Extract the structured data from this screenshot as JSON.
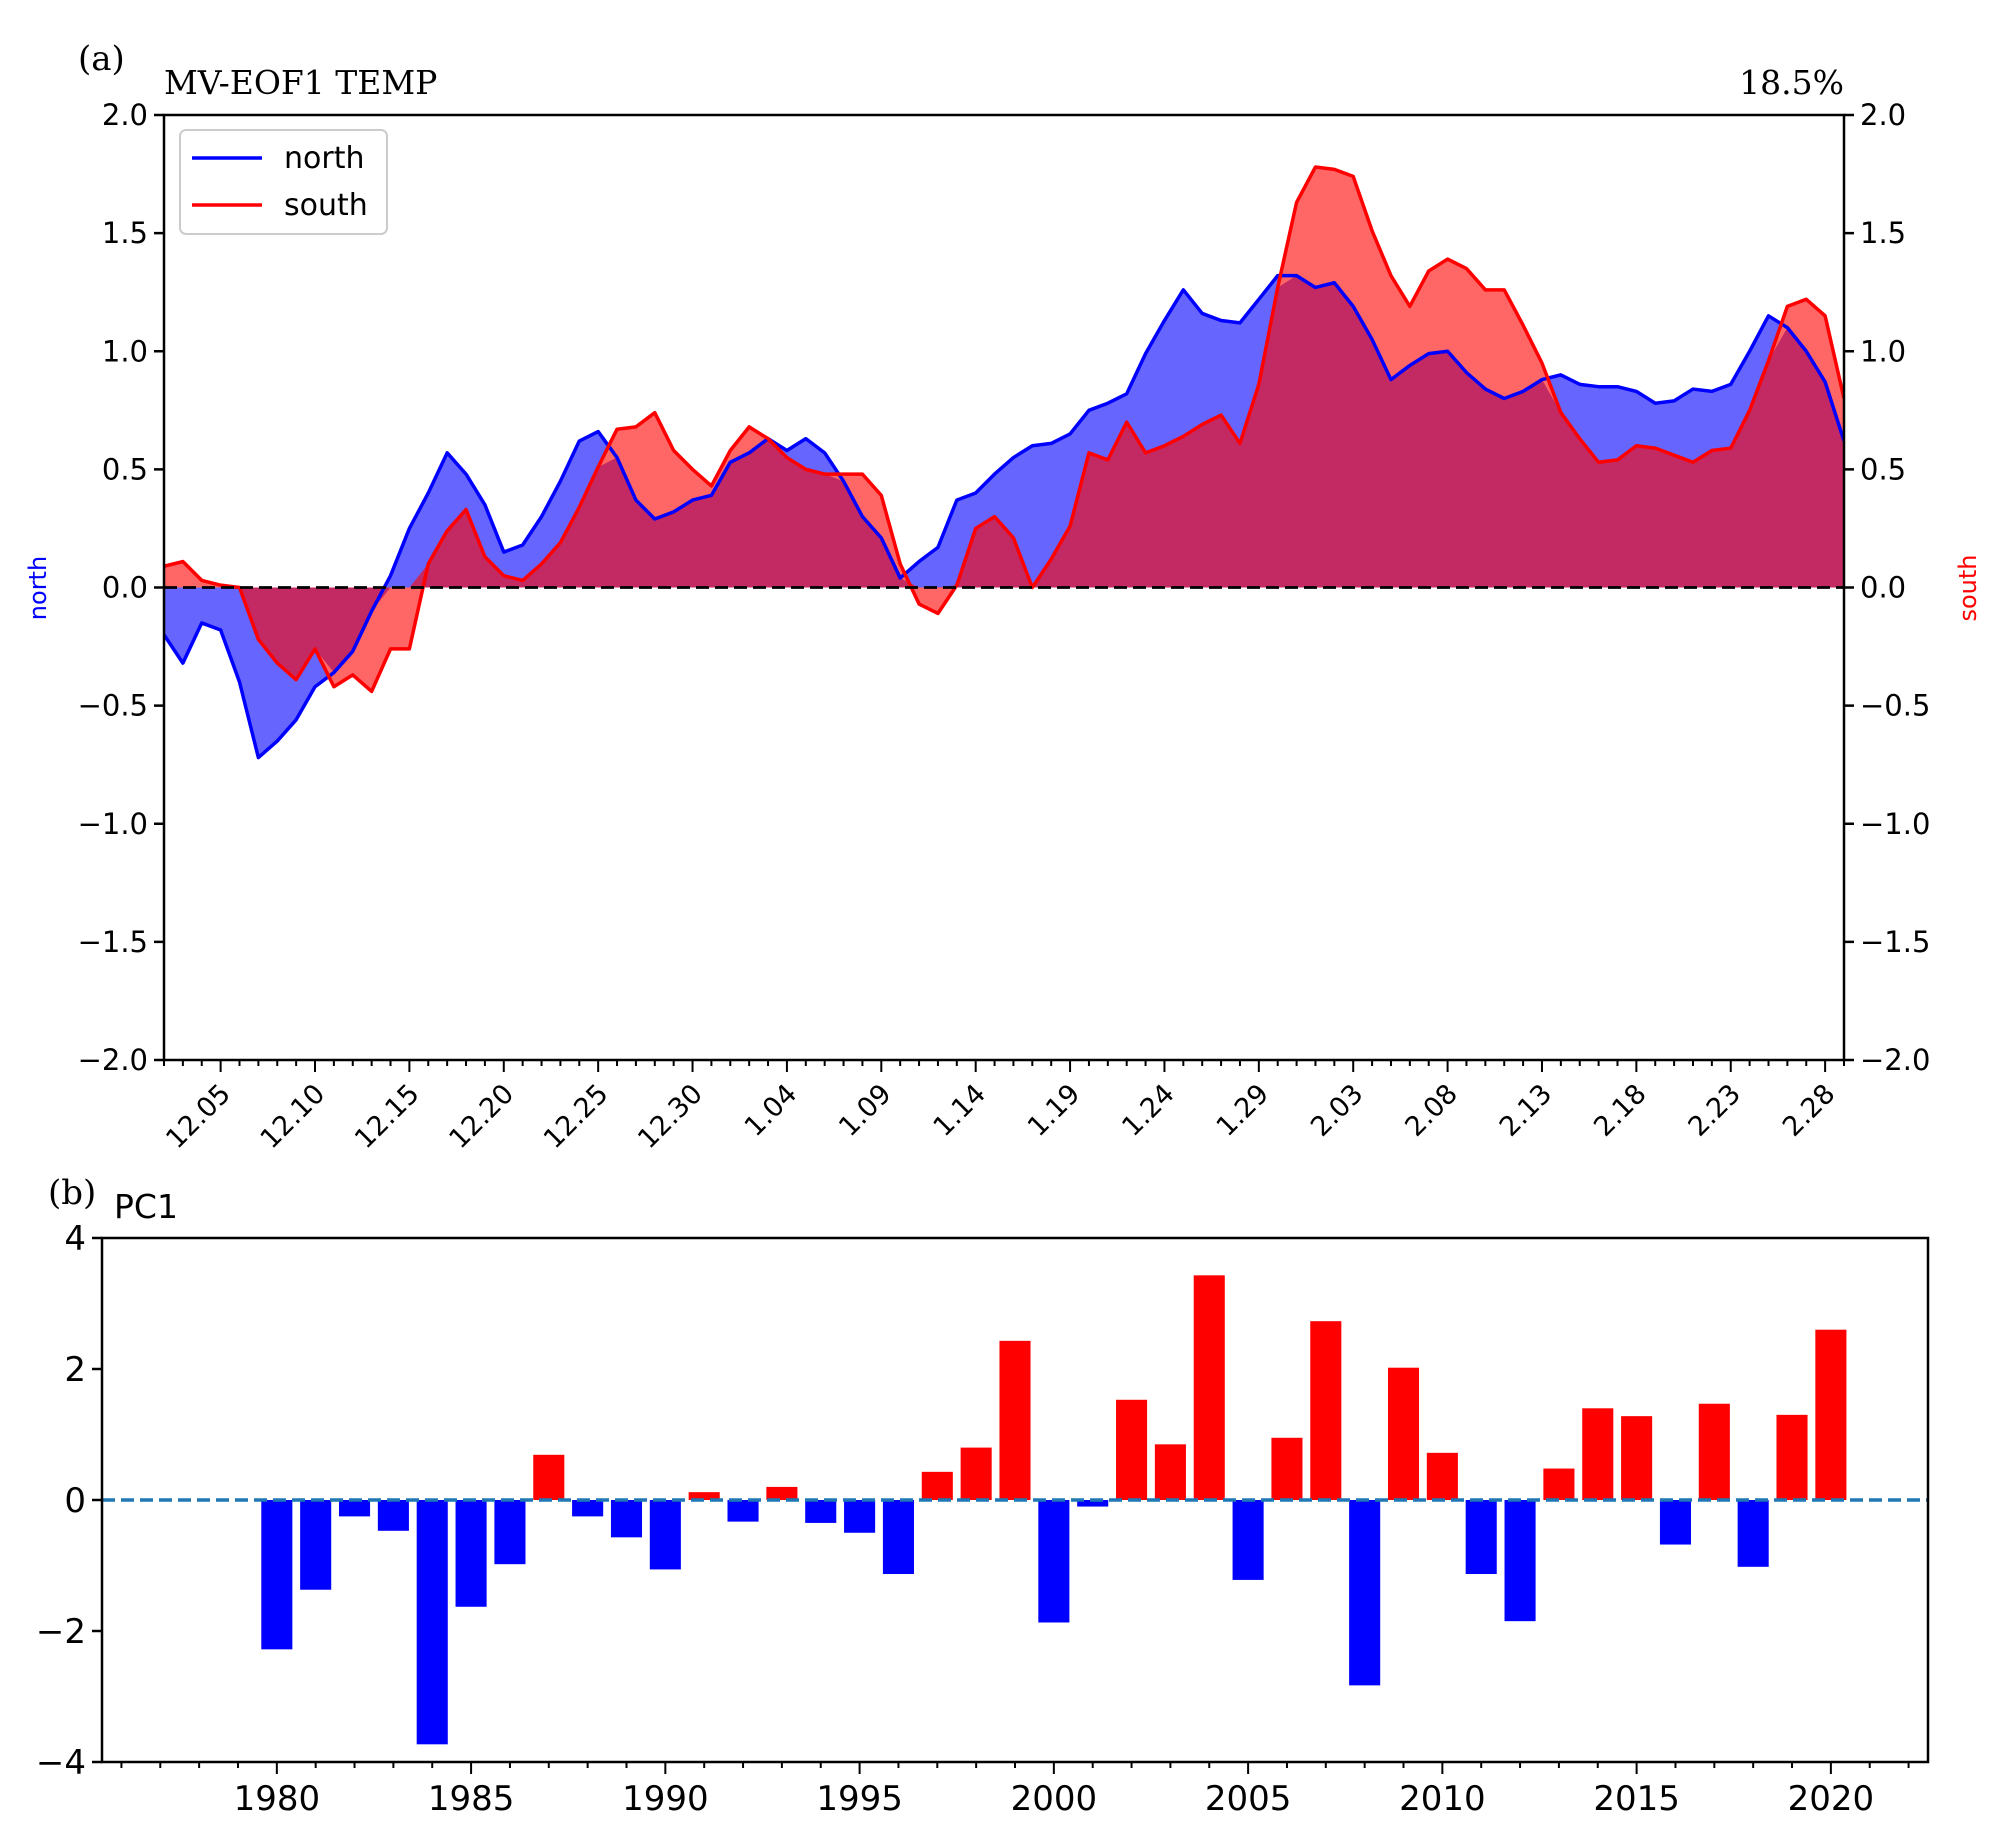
{
  "chart_data": [
    {
      "type": "area",
      "panel_label": "(a)",
      "title": "MV-EOF1 TEMP",
      "variance_label": "18.5%",
      "ylabel_left": "north",
      "ylabel_right": "south",
      "ylim": [
        -2.0,
        2.0
      ],
      "yticks": [
        "2.0",
        "1.5",
        "1.0",
        "0.5",
        "0.0",
        "−0.5",
        "−1.0",
        "−1.5",
        "−2.0"
      ],
      "xtick_labels": [
        "12.05",
        "12.10",
        "12.15",
        "12.20",
        "12.25",
        "12.30",
        "1.04",
        "1.09",
        "1.14",
        "1.19",
        "1.24",
        "1.29",
        "2.03",
        "2.08",
        "2.13",
        "2.18",
        "2.23",
        "2.28"
      ],
      "legend": [
        "north",
        "south"
      ],
      "colors": {
        "north": "#0000ff",
        "south": "#ff0000",
        "north_fill": "#6666ff",
        "south_fill": "#ff6666",
        "overlap_fill": "#c32a63"
      },
      "series": [
        {
          "name": "north",
          "values": [
            -0.2,
            -0.32,
            -0.15,
            -0.18,
            -0.4,
            -0.72,
            -0.65,
            -0.56,
            -0.42,
            -0.36,
            -0.27,
            -0.1,
            0.05,
            0.25,
            0.4,
            0.57,
            0.48,
            0.35,
            0.15,
            0.18,
            0.3,
            0.45,
            0.62,
            0.66,
            0.55,
            0.37,
            0.29,
            0.32,
            0.37,
            0.39,
            0.53,
            0.57,
            0.63,
            0.58,
            0.63,
            0.57,
            0.45,
            0.3,
            0.21,
            0.04,
            0.11,
            0.17,
            0.37,
            0.4,
            0.48,
            0.55,
            0.6,
            0.61,
            0.65,
            0.75,
            0.78,
            0.82,
            0.99,
            1.13,
            1.26,
            1.16,
            1.13,
            1.12,
            1.22,
            1.32,
            1.32,
            1.27,
            1.29,
            1.19,
            1.05,
            0.88,
            0.94,
            0.99,
            1.0,
            0.91,
            0.84,
            0.8,
            0.83,
            0.88,
            0.9,
            0.86,
            0.85,
            0.85,
            0.83,
            0.78,
            0.79,
            0.84,
            0.83,
            0.86,
            1.0,
            1.15,
            1.1,
            1.0,
            0.87,
            0.62
          ]
        },
        {
          "name": "south",
          "values": [
            0.09,
            0.11,
            0.03,
            0.01,
            0.0,
            -0.22,
            -0.32,
            -0.39,
            -0.26,
            -0.42,
            -0.37,
            -0.44,
            -0.26,
            -0.26,
            0.1,
            0.24,
            0.33,
            0.13,
            0.05,
            0.03,
            0.1,
            0.19,
            0.34,
            0.51,
            0.67,
            0.68,
            0.74,
            0.58,
            0.5,
            0.43,
            0.58,
            0.68,
            0.63,
            0.55,
            0.5,
            0.48,
            0.48,
            0.48,
            0.39,
            0.1,
            -0.07,
            -0.11,
            0.01,
            0.25,
            0.3,
            0.21,
            0.0,
            0.12,
            0.26,
            0.57,
            0.54,
            0.7,
            0.57,
            0.6,
            0.64,
            0.69,
            0.73,
            0.61,
            0.86,
            1.27,
            1.63,
            1.78,
            1.77,
            1.74,
            1.51,
            1.32,
            1.19,
            1.34,
            1.39,
            1.35,
            1.26,
            1.26,
            1.11,
            0.95,
            0.74,
            0.63,
            0.53,
            0.54,
            0.6,
            0.59,
            0.56,
            0.53,
            0.58,
            0.59,
            0.75,
            0.96,
            1.19,
            1.22,
            1.15,
            0.8
          ]
        }
      ]
    },
    {
      "type": "bar",
      "panel_label": "(b)",
      "title": "PC1",
      "ylim": [
        -4,
        4
      ],
      "yticks": [
        "4",
        "2",
        "0",
        "−2",
        "−4"
      ],
      "xlim": [
        1975.5,
        2022.5
      ],
      "xtick_labels": [
        "1980",
        "1985",
        "1990",
        "1995",
        "2000",
        "2005",
        "2010",
        "2015",
        "2020"
      ],
      "colors": {
        "positive": "#ff0000",
        "negative": "#0000ff",
        "zero_line": "#1f77b4"
      },
      "categories": [
        1980,
        1981,
        1982,
        1983,
        1984,
        1985,
        1986,
        1987,
        1988,
        1989,
        1990,
        1991,
        1992,
        1993,
        1994,
        1995,
        1996,
        1997,
        1998,
        1999,
        2000,
        2001,
        2002,
        2003,
        2004,
        2005,
        2006,
        2007,
        2008,
        2009,
        2010,
        2011,
        2012,
        2013,
        2014,
        2015,
        2016,
        2017,
        2018,
        2019,
        2020
      ],
      "values": [
        -2.28,
        -1.37,
        -0.25,
        -0.47,
        -3.73,
        -1.63,
        -0.98,
        0.69,
        -0.25,
        -0.57,
        -1.06,
        0.12,
        -0.33,
        0.2,
        -0.35,
        -0.5,
        -1.13,
        0.43,
        0.8,
        2.43,
        -1.87,
        -0.1,
        1.53,
        0.85,
        3.43,
        -1.22,
        0.95,
        2.73,
        -2.83,
        2.02,
        0.72,
        -1.13,
        -1.85,
        0.48,
        1.4,
        1.28,
        -0.68,
        1.47,
        -1.02,
        1.3,
        2.6
      ]
    }
  ]
}
